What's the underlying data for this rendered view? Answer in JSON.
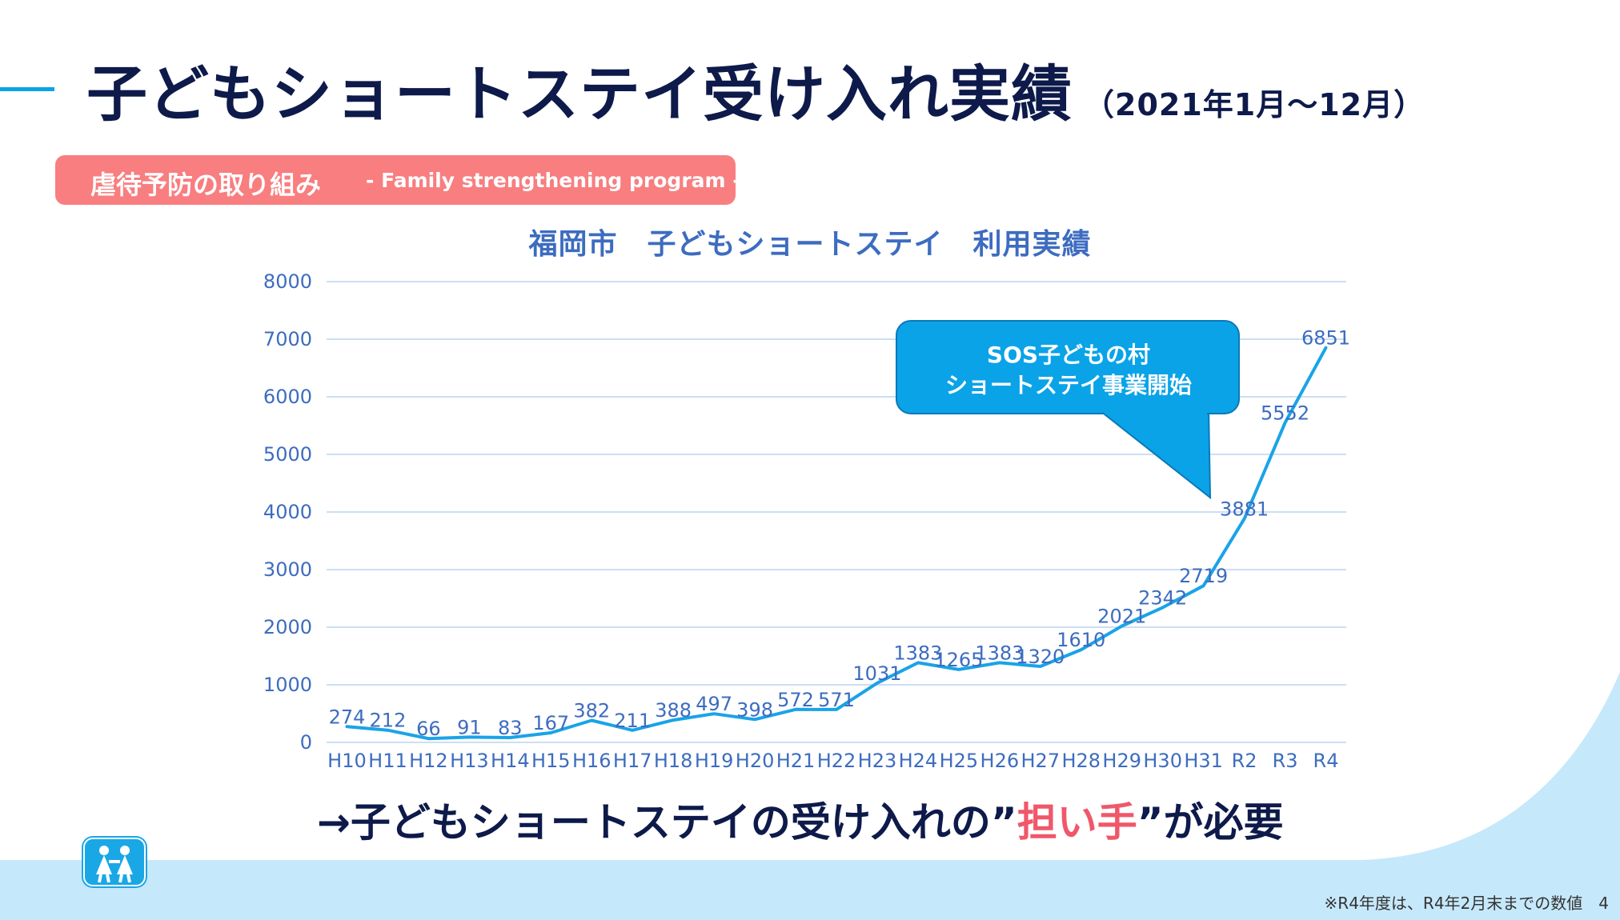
{
  "header": {
    "title": "子どもショートステイ受け入れ実績",
    "period": "（2021年1月～12月）"
  },
  "pill": {
    "label_jp": "虐待予防の取り組み",
    "label_en": "- Family strengthening program -"
  },
  "callout": {
    "line1": "SOS子どもの村",
    "line2": "ショートステイ事業開始"
  },
  "conclusion": {
    "prefix": "→子どもショートステイの受け入れの”",
    "highlight": "担い手",
    "suffix": "”が必要"
  },
  "footnote": "※R4年度は、R4年2月末までの数値　4",
  "colors": {
    "title": "#0d1a4a",
    "accent": "#0aa3e8",
    "pill": "#f87e80",
    "line": "#1aa3e8",
    "callout": "#0aa3e8",
    "highlight": "#f0576a",
    "background_wave": "#c6e8fb"
  },
  "logo": {
    "icon": "sos-childrens-villages-logo"
  },
  "chart_data": {
    "type": "line",
    "title": "福岡市　子どもショートステイ　利用実績",
    "xlabel": "",
    "ylabel": "",
    "categories": [
      "H10",
      "H11",
      "H12",
      "H13",
      "H14",
      "H15",
      "H16",
      "H17",
      "H18",
      "H19",
      "H20",
      "H21",
      "H22",
      "H23",
      "H24",
      "H25",
      "H26",
      "H27",
      "H28",
      "H29",
      "H30",
      "H31",
      "R2",
      "R3",
      "R4"
    ],
    "values": [
      274,
      212,
      66,
      91,
      83,
      167,
      382,
      211,
      388,
      497,
      398,
      572,
      571,
      1031,
      1383,
      1265,
      1383,
      1320,
      1610,
      2021,
      2342,
      2719,
      3881,
      5552,
      6851
    ],
    "ylim": [
      0,
      8000
    ],
    "yticks": [
      0,
      1000,
      2000,
      3000,
      4000,
      5000,
      6000,
      7000,
      8000
    ],
    "grid": true,
    "data_labels": true,
    "legend": "none"
  }
}
